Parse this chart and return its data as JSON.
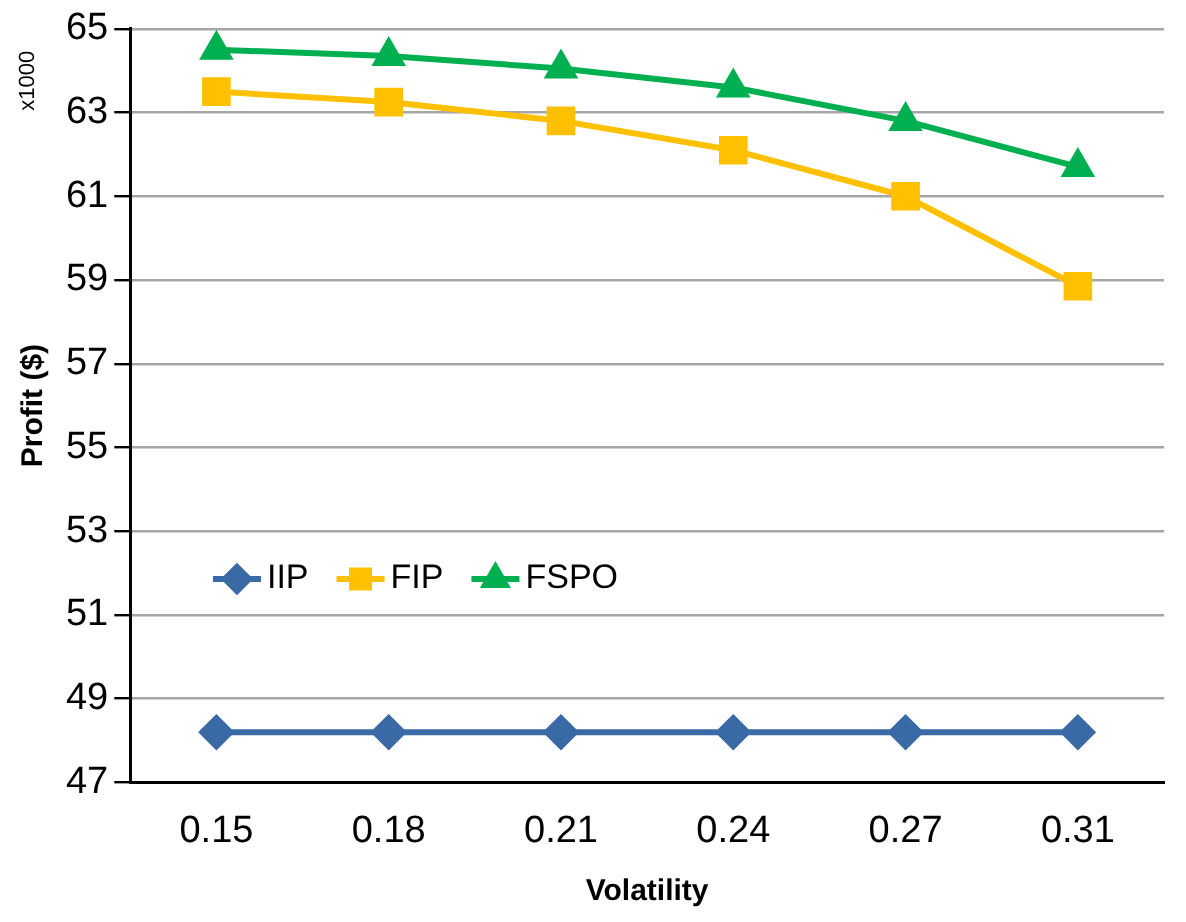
{
  "chart_data": {
    "type": "line",
    "xlabel": "Volatility",
    "ylabel": "Profit ($)",
    "annotations": [
      "x1000"
    ],
    "categories": [
      "0.15",
      "0.18",
      "0.21",
      "0.24",
      "0.27",
      "0.31"
    ],
    "series": [
      {
        "name": "IIP",
        "color": "#3a6aa5",
        "marker": "diamond",
        "values": [
          48.2,
          48.2,
          48.2,
          48.2,
          48.2,
          48.2
        ]
      },
      {
        "name": "FIP",
        "color": "#ffc000",
        "marker": "square",
        "values": [
          63.5,
          63.25,
          62.8,
          62.1,
          61.0,
          58.85
        ]
      },
      {
        "name": "FSPO",
        "color": "#00b050",
        "marker": "triangle",
        "values": [
          64.5,
          64.35,
          64.05,
          63.6,
          62.8,
          61.7
        ]
      }
    ],
    "ylim": [
      47,
      65
    ],
    "yticks": [
      47,
      49,
      51,
      53,
      55,
      57,
      59,
      61,
      63,
      65
    ],
    "grid": "y",
    "legend": "center left"
  }
}
